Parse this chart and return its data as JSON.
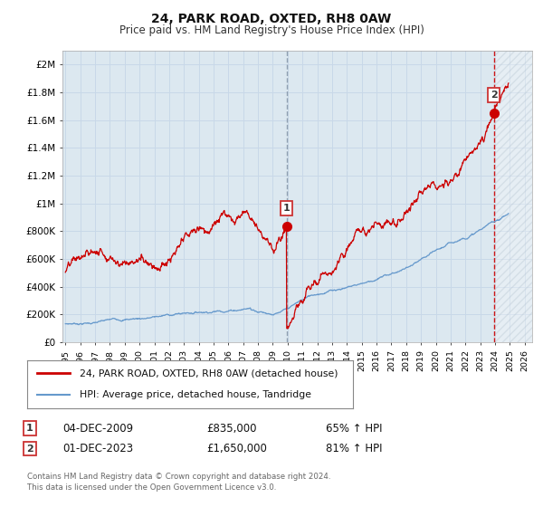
{
  "title": "24, PARK ROAD, OXTED, RH8 0AW",
  "subtitle": "Price paid vs. HM Land Registry's House Price Index (HPI)",
  "ylabel_ticks": [
    "£0",
    "£200K",
    "£400K",
    "£600K",
    "£800K",
    "£1M",
    "£1.2M",
    "£1.4M",
    "£1.6M",
    "£1.8M",
    "£2M"
  ],
  "ytick_values": [
    0,
    200000,
    400000,
    600000,
    800000,
    1000000,
    1200000,
    1400000,
    1600000,
    1800000,
    2000000
  ],
  "ylim": [
    0,
    2100000
  ],
  "xlim_start": 1994.8,
  "xlim_end": 2026.5,
  "grid_color": "#c8d8e8",
  "plot_bg": "#dce8f0",
  "red_line_color": "#cc0000",
  "blue_line_color": "#6699cc",
  "sale1_x": 2009.92,
  "sale1_y": 835000,
  "sale2_x": 2023.92,
  "sale2_y": 1650000,
  "vline1_x": 2009.92,
  "vline1_color": "#8899aa",
  "vline2_x": 2023.92,
  "vline2_color": "#cc0000",
  "legend_line1": "24, PARK ROAD, OXTED, RH8 0AW (detached house)",
  "legend_line2": "HPI: Average price, detached house, Tandridge",
  "annotation1_date": "04-DEC-2009",
  "annotation1_price": "£835,000",
  "annotation1_hpi": "65% ↑ HPI",
  "annotation2_date": "01-DEC-2023",
  "annotation2_price": "£1,650,000",
  "annotation2_hpi": "81% ↑ HPI",
  "footer": "Contains HM Land Registry data © Crown copyright and database right 2024.\nThis data is licensed under the Open Government Licence v3.0.",
  "xtick_years": [
    1995,
    1996,
    1997,
    1998,
    1999,
    2000,
    2001,
    2002,
    2003,
    2004,
    2005,
    2006,
    2007,
    2008,
    2009,
    2010,
    2011,
    2012,
    2013,
    2014,
    2015,
    2016,
    2017,
    2018,
    2019,
    2020,
    2021,
    2022,
    2023,
    2024,
    2025,
    2026
  ]
}
